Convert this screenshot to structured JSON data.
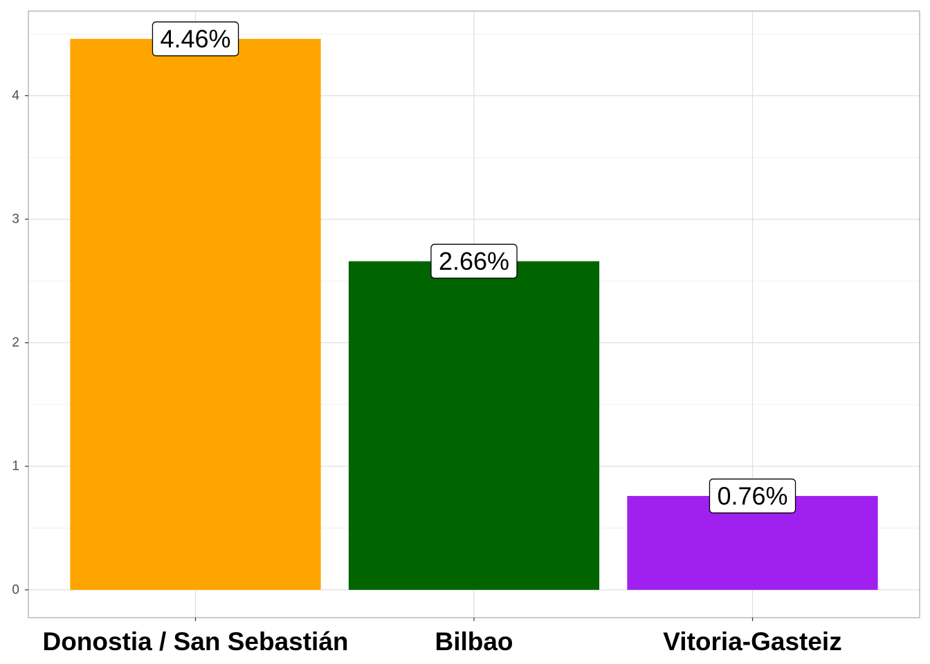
{
  "chart_data": {
    "type": "bar",
    "categories": [
      "Donostia / San Sebastián",
      "Bilbao",
      "Vitoria-Gasteiz"
    ],
    "values": [
      4.46,
      2.66,
      0.76
    ],
    "data_labels": [
      "4.46%",
      "2.66%",
      "0.76%"
    ],
    "colors": [
      "#FFA500",
      "#006400",
      "#A020F0"
    ],
    "y_ticks": [
      0,
      1,
      2,
      3,
      4
    ],
    "y_tick_labels": [
      "0",
      "1",
      "2",
      "3",
      "4"
    ],
    "ylim": [
      0,
      4.46
    ],
    "title": "",
    "xlabel": "",
    "ylabel": "",
    "grid": true,
    "legend": "none"
  }
}
